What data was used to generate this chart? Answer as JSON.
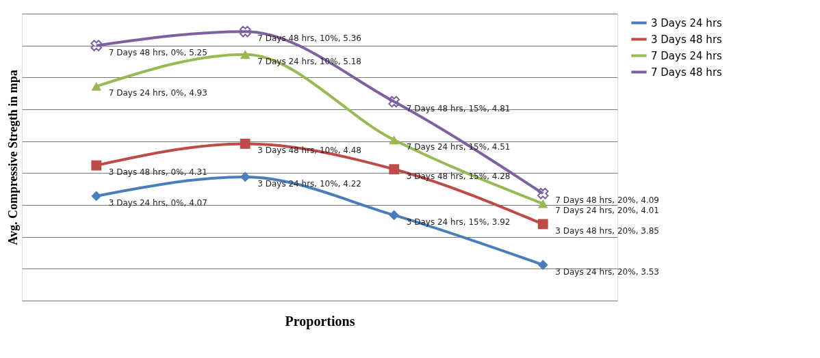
{
  "chart_data": {
    "type": "line",
    "xlabel": "Proportions",
    "ylabel": "Avg.  Compressive Stregth in mpa",
    "categories": [
      null,
      null,
      null,
      null
    ],
    "relative": false,
    "ylim": [
      3.25,
      5.5
    ],
    "yticks": [
      {
        "value": 3.25,
        "label": null
      },
      {
        "value": 3.5,
        "label": null
      },
      {
        "value": 3.75,
        "label": null
      },
      {
        "value": 4.0,
        "label": null
      },
      {
        "value": 4.25,
        "label": null
      },
      {
        "value": 4.5,
        "label": null
      },
      {
        "value": 4.75,
        "label": null
      },
      {
        "value": 5.0,
        "label": null
      },
      {
        "value": 5.25,
        "label": null
      },
      {
        "value": 5.5,
        "label": null
      }
    ],
    "grid": "y",
    "legend": "right",
    "tick_labels": false,
    "series": [
      {
        "name": "3 Days 24 hrs",
        "color": "#4a7ebb",
        "marker": "diamond",
        "values": [
          4.07,
          4.22,
          3.92,
          3.53
        ],
        "value_labels": [
          "3 Days 24 hrs, 0%, 4.07",
          "3 Days 24 hrs, 10%, 4.22",
          "3 Days 24 hrs, 15%, 3.92",
          "3 Days 24 hrs, 20%, 3.53"
        ]
      },
      {
        "name": "3 Days 48 hrs",
        "color": "#be4b48",
        "marker": "square",
        "values": [
          4.31,
          4.48,
          4.28,
          3.85
        ],
        "value_labels": [
          "3 Days 48 hrs, 0%, 4.31",
          "3 Days 48 hrs, 10%, 4.48",
          "3 Days 48 hrs, 15%, 4.28",
          "3 Days 48 hrs, 20%, 3.85"
        ]
      },
      {
        "name": "7 Days 24 hrs",
        "color": "#98b954",
        "marker": "triangle",
        "values": [
          4.93,
          5.18,
          4.51,
          4.01
        ],
        "value_labels": [
          "7 Days 24 hrs, 0%, 4.93",
          "7 Days 24 hrs, 10%, 5.18",
          "7 Days 24 hrs, 15%, 4.51",
          "7 Days 24 hrs, 20%, 4.01"
        ]
      },
      {
        "name": "7 Days 48 hrs",
        "color": "#7d60a0",
        "marker": "cross",
        "values": [
          5.25,
          5.36,
          4.81,
          4.09
        ],
        "value_labels": [
          "7 Days 48 hrs, 0%, 5.25",
          "7 Days 48 hrs, 10%, 5.36",
          "7 Days 48 hrs, 15%, 4.81",
          "7 Days 48 hrs, 20%, 4.09"
        ]
      }
    ]
  }
}
